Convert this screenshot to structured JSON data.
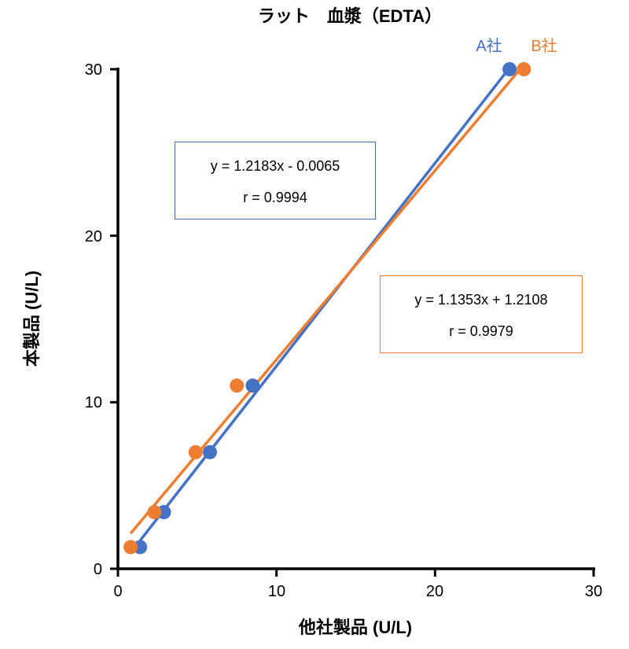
{
  "chart_data": {
    "type": "scatter",
    "title": "ラット　血漿（EDTA）",
    "xlabel": "他社製品 (U/L)",
    "ylabel": "本製品 (U/L)",
    "xlim": [
      0,
      30
    ],
    "ylim": [
      0,
      30
    ],
    "xticks": [
      "0",
      "10",
      "20",
      "30"
    ],
    "yticks": [
      "0",
      "10",
      "20",
      "30"
    ],
    "grid": false,
    "legend_placement": "top-right",
    "series": [
      {
        "name": "A社",
        "color": "#4472C4",
        "x": [
          1.4,
          2.9,
          5.8,
          8.5,
          24.7
        ],
        "y": [
          1.3,
          3.4,
          7.0,
          11.0,
          30.0
        ],
        "trendline": {
          "slope": 1.2183,
          "intercept": -0.0065
        },
        "equation": "y = 1.2183x - 0.0065",
        "r": "r = 0.9994"
      },
      {
        "name": "B社",
        "color": "#ED7D31",
        "x": [
          0.8,
          2.3,
          4.9,
          7.5,
          25.6
        ],
        "y": [
          1.3,
          3.4,
          7.0,
          11.0,
          30.0
        ],
        "trendline": {
          "slope": 1.1353,
          "intercept": 1.2108
        },
        "equation": "y = 1.1353x + 1.2108",
        "r": "r = 0.9979"
      }
    ]
  }
}
